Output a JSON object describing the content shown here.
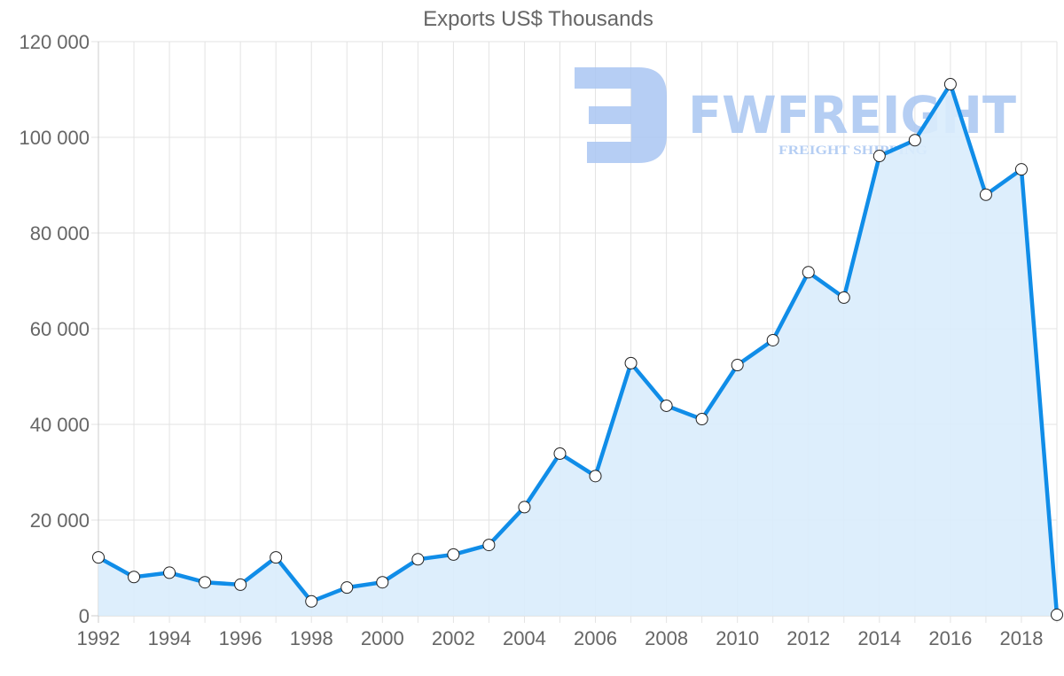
{
  "chart_data": {
    "type": "area",
    "title": "Exports US$ Thousands",
    "xlabel": "",
    "ylabel": "",
    "ylim": [
      0,
      120000
    ],
    "yticks": [
      "0",
      "20 000",
      "40 000",
      "60 000",
      "80 000",
      "100 000",
      "120 000"
    ],
    "xticks": [
      "1992",
      "1994",
      "1996",
      "1998",
      "2000",
      "2002",
      "2004",
      "2006",
      "2008",
      "2010",
      "2012",
      "2014",
      "2016",
      "2018"
    ],
    "grid": true,
    "legend": null,
    "x": [
      1992,
      1993,
      1994,
      1995,
      1996,
      1997,
      1998,
      1999,
      2000,
      2001,
      2002,
      2003,
      2004,
      2005,
      2006,
      2007,
      2008,
      2009,
      2010,
      2011,
      2012,
      2013,
      2014,
      2015,
      2016,
      2017,
      2018,
      2019
    ],
    "series": [
      {
        "name": "Exports US$ Thousands",
        "values": [
          12200,
          8100,
          9000,
          7000,
          6500,
          12200,
          3000,
          5900,
          7000,
          11800,
          12800,
          14800,
          22700,
          33900,
          29200,
          52800,
          43900,
          41100,
          52400,
          57600,
          71800,
          66500,
          96100,
          99400,
          111100,
          88000,
          93300,
          200
        ]
      }
    ]
  },
  "colors": {
    "line": "#108de8",
    "fill": "#d9ecfc",
    "grid": "#e3e3e3",
    "text": "#666666",
    "watermark": "#a9c6f2"
  },
  "watermark": {
    "brand": "FWFREIGHT",
    "tagline": "FREIGHT SHIPPING"
  }
}
